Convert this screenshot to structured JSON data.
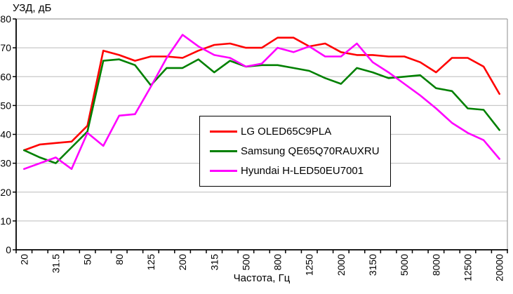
{
  "chart_data": {
    "type": "line",
    "title": "УЗД, дБ",
    "xlabel": "Частота, Гц",
    "ylabel": "УЗД, дБ",
    "ylim": [
      0,
      80
    ],
    "ytick_step": 10,
    "y_ticks": [
      0,
      10,
      20,
      30,
      40,
      50,
      60,
      70,
      80
    ],
    "grid": "horizontal gridlines on",
    "legend_position": "boxed, center of plot",
    "categories": [
      "20",
      "25",
      "31.5",
      "40",
      "50",
      "63",
      "80",
      "100",
      "125",
      "160",
      "200",
      "250",
      "315",
      "400",
      "500",
      "630",
      "800",
      "1000",
      "1250",
      "1600",
      "2000",
      "2500",
      "3150",
      "4000",
      "5000",
      "6300",
      "8000",
      "10000",
      "12500",
      "16000",
      "20000"
    ],
    "x_tick_labels": [
      "20",
      "31.5",
      "50",
      "80",
      "125",
      "200",
      "315",
      "500",
      "800",
      "1250",
      "2000",
      "3150",
      "5000",
      "8000",
      "12500",
      "20000"
    ],
    "x_labeled_every": 2,
    "series": [
      {
        "name": "LG OLED65C9PLA",
        "color": "#ff0000",
        "values": [
          34.5,
          36.5,
          37,
          37.5,
          43,
          69,
          67.5,
          65.5,
          67,
          67,
          66.5,
          69,
          71,
          71.5,
          70,
          70,
          73.5,
          73.5,
          70.5,
          71.5,
          68.5,
          67.5,
          67.5,
          67,
          67,
          65,
          61.5,
          66.5,
          66.5,
          63.5,
          54
        ]
      },
      {
        "name": "Samsung QE65Q70RAUXRU",
        "color": "#008000",
        "values": [
          34.5,
          32,
          30,
          35.5,
          41,
          65.5,
          66,
          64,
          57,
          63,
          63,
          66,
          61.5,
          65.5,
          63.5,
          64,
          64,
          63,
          62,
          59.5,
          57.5,
          63,
          61.5,
          59.5,
          60,
          60.5,
          56,
          55,
          49,
          48.5,
          41.5
        ]
      },
      {
        "name": "Hyundai H-LED50EU7001",
        "color": "#ff00ff",
        "values": [
          28,
          30,
          32,
          28,
          40.5,
          36,
          46.5,
          47,
          56.5,
          66.5,
          74.5,
          70.5,
          67.5,
          66.5,
          63.5,
          64.5,
          70,
          68.5,
          70.5,
          67,
          67,
          71.5,
          65,
          61.5,
          57.5,
          53.5,
          49,
          44,
          40.5,
          38,
          31.5
        ]
      }
    ]
  },
  "colors": {
    "background": "#ffffff",
    "gridline": "#c9c9c9",
    "plot_border": "#a0a0a0",
    "axis": "#000000",
    "series_red": "#ff0000",
    "series_green": "#008000",
    "series_magenta": "#ff00ff"
  }
}
